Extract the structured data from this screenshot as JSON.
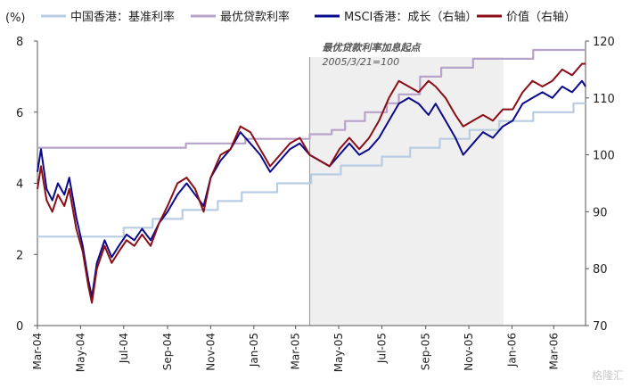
{
  "chart_data": {
    "type": "line",
    "left_axis_unit": "(%)",
    "left_ylim": [
      0,
      8
    ],
    "left_ticks": [
      "0",
      "2",
      "4",
      "6",
      "8"
    ],
    "right_ylim": [
      70,
      120
    ],
    "right_ticks": [
      "70",
      "80",
      "90",
      "100",
      "110",
      "120"
    ],
    "x_range": [
      "2004-03-01",
      "2006-04-15"
    ],
    "x_ticks": [
      {
        "date": "2004-03-01",
        "label": "Mar-04"
      },
      {
        "date": "2004-05-01",
        "label": "May-04"
      },
      {
        "date": "2004-07-01",
        "label": "Jul-04"
      },
      {
        "date": "2004-09-01",
        "label": "Sep-04"
      },
      {
        "date": "2004-11-01",
        "label": "Nov-04"
      },
      {
        "date": "2005-01-01",
        "label": "Jan-05"
      },
      {
        "date": "2005-03-01",
        "label": "Mar-05"
      },
      {
        "date": "2005-05-01",
        "label": "May-05"
      },
      {
        "date": "2005-07-01",
        "label": "Jul-05"
      },
      {
        "date": "2005-09-01",
        "label": "Sep-05"
      },
      {
        "date": "2005-11-01",
        "label": "Nov-05"
      },
      {
        "date": "2006-01-01",
        "label": "Jan-06"
      },
      {
        "date": "2006-03-01",
        "label": "Mar-06"
      }
    ],
    "shaded_region": {
      "start": "2005-03-21",
      "end": "2005-12-20",
      "label_line1": "最优贷款利率加息起点",
      "label_line2": "2005/3/21=100"
    },
    "legend_position": "top",
    "series": [
      {
        "name": "中国香港：基准利率",
        "color": "#b8cce4",
        "axis": "left",
        "step": true,
        "points": [
          [
            "2004-03-01",
            2.5
          ],
          [
            "2004-07-01",
            2.75
          ],
          [
            "2004-08-11",
            3.0
          ],
          [
            "2004-09-22",
            3.25
          ],
          [
            "2004-11-11",
            3.5
          ],
          [
            "2004-12-15",
            3.75
          ],
          [
            "2005-02-03",
            4.0
          ],
          [
            "2005-03-23",
            4.25
          ],
          [
            "2005-05-04",
            4.5
          ],
          [
            "2005-07-01",
            4.75
          ],
          [
            "2005-08-10",
            5.0
          ],
          [
            "2005-09-21",
            5.25
          ],
          [
            "2005-11-02",
            5.5
          ],
          [
            "2005-12-14",
            5.75
          ],
          [
            "2006-01-31",
            6.0
          ],
          [
            "2006-03-29",
            6.25
          ],
          [
            "2006-04-15",
            6.25
          ]
        ]
      },
      {
        "name": "最优贷款利率",
        "color": "#b7a2c9",
        "axis": "left",
        "step": true,
        "points": [
          [
            "2004-03-01",
            5.0
          ],
          [
            "2004-09-27",
            5.12
          ],
          [
            "2004-12-20",
            5.25
          ],
          [
            "2005-03-21",
            5.38
          ],
          [
            "2005-04-21",
            5.5
          ],
          [
            "2005-05-10",
            5.75
          ],
          [
            "2005-06-07",
            6.0
          ],
          [
            "2005-07-08",
            6.25
          ],
          [
            "2005-07-25",
            6.5
          ],
          [
            "2005-08-24",
            7.0
          ],
          [
            "2005-09-23",
            7.25
          ],
          [
            "2005-11-07",
            7.5
          ],
          [
            "2006-01-31",
            7.75
          ],
          [
            "2006-04-15",
            7.75
          ]
        ]
      },
      {
        "name": "MSCI香港：成长（右轴）",
        "color": "#0a0a8a",
        "axis": "right",
        "step": false,
        "points": [
          [
            "2004-03-01",
            97
          ],
          [
            "2004-03-06",
            101
          ],
          [
            "2004-03-14",
            94
          ],
          [
            "2004-03-22",
            92
          ],
          [
            "2004-03-30",
            95
          ],
          [
            "2004-04-08",
            93
          ],
          [
            "2004-04-15",
            96
          ],
          [
            "2004-04-25",
            89
          ],
          [
            "2004-05-04",
            84
          ],
          [
            "2004-05-12",
            78
          ],
          [
            "2004-05-17",
            75
          ],
          [
            "2004-05-24",
            81
          ],
          [
            "2004-06-04",
            85
          ],
          [
            "2004-06-14",
            82
          ],
          [
            "2004-06-24",
            84
          ],
          [
            "2004-07-05",
            86
          ],
          [
            "2004-07-16",
            85
          ],
          [
            "2004-07-27",
            87
          ],
          [
            "2004-08-08",
            85
          ],
          [
            "2004-08-20",
            88
          ],
          [
            "2004-09-01",
            90
          ],
          [
            "2004-09-15",
            93
          ],
          [
            "2004-09-28",
            95
          ],
          [
            "2004-10-10",
            93
          ],
          [
            "2004-10-22",
            91
          ],
          [
            "2004-11-01",
            96
          ],
          [
            "2004-11-15",
            99
          ],
          [
            "2004-11-29",
            101
          ],
          [
            "2004-12-13",
            104
          ],
          [
            "2004-12-27",
            102
          ],
          [
            "2005-01-10",
            100
          ],
          [
            "2005-01-24",
            97
          ],
          [
            "2005-02-07",
            99
          ],
          [
            "2005-02-21",
            101
          ],
          [
            "2005-03-07",
            102
          ],
          [
            "2005-03-21",
            100
          ],
          [
            "2005-04-04",
            99
          ],
          [
            "2005-04-18",
            98
          ],
          [
            "2005-05-02",
            100
          ],
          [
            "2005-05-16",
            102
          ],
          [
            "2005-05-30",
            100
          ],
          [
            "2005-06-13",
            101
          ],
          [
            "2005-06-27",
            103
          ],
          [
            "2005-07-11",
            106
          ],
          [
            "2005-07-25",
            109
          ],
          [
            "2005-08-08",
            110
          ],
          [
            "2005-08-22",
            109
          ],
          [
            "2005-09-05",
            107
          ],
          [
            "2005-09-15",
            109
          ],
          [
            "2005-09-29",
            106
          ],
          [
            "2005-10-13",
            103
          ],
          [
            "2005-10-24",
            100
          ],
          [
            "2005-11-07",
            102
          ],
          [
            "2005-11-21",
            104
          ],
          [
            "2005-12-05",
            103
          ],
          [
            "2005-12-19",
            105
          ],
          [
            "2006-01-02",
            106
          ],
          [
            "2006-01-16",
            109
          ],
          [
            "2006-01-30",
            110
          ],
          [
            "2006-02-13",
            111
          ],
          [
            "2006-02-27",
            110
          ],
          [
            "2006-03-13",
            112
          ],
          [
            "2006-03-27",
            111
          ],
          [
            "2006-04-10",
            113
          ],
          [
            "2006-04-15",
            112
          ]
        ]
      },
      {
        "name": "价值（右轴）",
        "color": "#8b0d16",
        "axis": "right",
        "step": false,
        "points": [
          [
            "2004-03-01",
            94
          ],
          [
            "2004-03-06",
            98
          ],
          [
            "2004-03-14",
            92
          ],
          [
            "2004-03-22",
            90
          ],
          [
            "2004-03-30",
            93
          ],
          [
            "2004-04-08",
            91
          ],
          [
            "2004-04-15",
            94
          ],
          [
            "2004-04-25",
            87
          ],
          [
            "2004-05-04",
            83
          ],
          [
            "2004-05-12",
            77
          ],
          [
            "2004-05-17",
            74
          ],
          [
            "2004-05-24",
            80
          ],
          [
            "2004-06-04",
            84
          ],
          [
            "2004-06-14",
            81
          ],
          [
            "2004-06-24",
            83
          ],
          [
            "2004-07-05",
            85
          ],
          [
            "2004-07-16",
            84
          ],
          [
            "2004-07-27",
            86
          ],
          [
            "2004-08-08",
            84
          ],
          [
            "2004-08-20",
            88
          ],
          [
            "2004-09-01",
            91
          ],
          [
            "2004-09-15",
            95
          ],
          [
            "2004-09-28",
            96
          ],
          [
            "2004-10-10",
            94
          ],
          [
            "2004-10-22",
            90
          ],
          [
            "2004-11-01",
            96
          ],
          [
            "2004-11-15",
            100
          ],
          [
            "2004-11-29",
            101
          ],
          [
            "2004-12-13",
            105
          ],
          [
            "2004-12-27",
            104
          ],
          [
            "2005-01-10",
            101
          ],
          [
            "2005-01-24",
            98
          ],
          [
            "2005-02-07",
            100
          ],
          [
            "2005-02-21",
            102
          ],
          [
            "2005-03-07",
            103
          ],
          [
            "2005-03-21",
            100
          ],
          [
            "2005-04-04",
            99
          ],
          [
            "2005-04-18",
            98
          ],
          [
            "2005-05-02",
            101
          ],
          [
            "2005-05-16",
            103
          ],
          [
            "2005-05-30",
            101
          ],
          [
            "2005-06-13",
            103
          ],
          [
            "2005-06-27",
            106
          ],
          [
            "2005-07-11",
            110
          ],
          [
            "2005-07-25",
            113
          ],
          [
            "2005-08-08",
            112
          ],
          [
            "2005-08-22",
            111
          ],
          [
            "2005-09-05",
            113
          ],
          [
            "2005-09-15",
            112
          ],
          [
            "2005-09-29",
            110
          ],
          [
            "2005-10-13",
            107
          ],
          [
            "2005-10-24",
            105
          ],
          [
            "2005-11-07",
            106
          ],
          [
            "2005-11-21",
            107
          ],
          [
            "2005-12-05",
            106
          ],
          [
            "2005-12-19",
            108
          ],
          [
            "2006-01-02",
            108
          ],
          [
            "2006-01-16",
            111
          ],
          [
            "2006-01-30",
            113
          ],
          [
            "2006-02-13",
            112
          ],
          [
            "2006-02-27",
            113
          ],
          [
            "2006-03-13",
            115
          ],
          [
            "2006-03-27",
            114
          ],
          [
            "2006-04-10",
            116
          ],
          [
            "2006-04-15",
            116
          ]
        ]
      }
    ]
  },
  "watermark": "格隆汇"
}
